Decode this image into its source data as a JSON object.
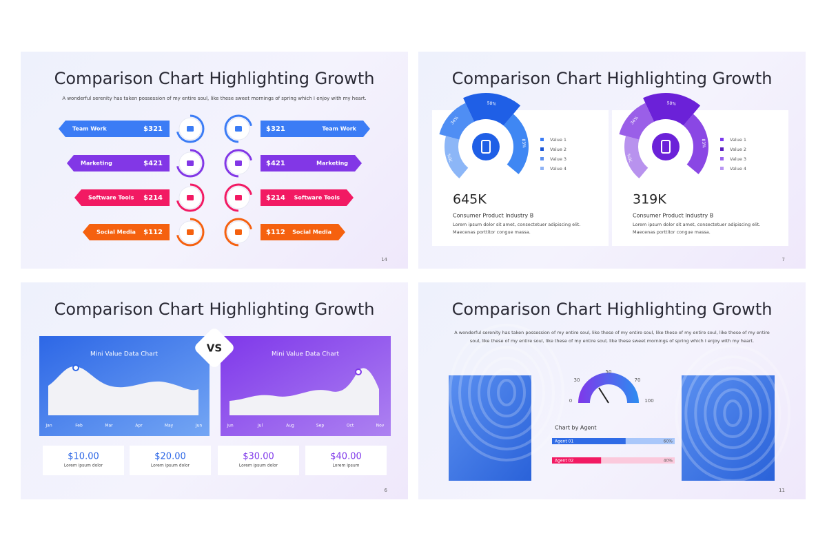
{
  "slides": [
    {
      "number": "14",
      "title": "Comparison Chart Highlighting Growth",
      "subtitle": "A wonderful serenity has taken possession of my entire soul, like these sweet mornings of spring which I enjoy with my heart.",
      "rows": [
        {
          "label": "Team Work",
          "amount": "$321"
        },
        {
          "label": "Marketing",
          "amount": "$421"
        },
        {
          "label": "Software Tools",
          "amount": "$214"
        },
        {
          "label": "Social Media",
          "amount": "$112"
        }
      ]
    },
    {
      "number": "7",
      "title": "Comparison Chart Highlighting Growth",
      "cards": [
        {
          "segments": [
            "70%",
            "34%",
            "58%",
            "83%"
          ],
          "legend": [
            "Value 1",
            "Value 2",
            "Value 3",
            "Value 4"
          ],
          "stat": "645K",
          "heading": "Consumer Product Industry B",
          "text": "Lorem ipsum dolor sit amet, consectetuer adipiscing elit. Maecenas porttitor congue massa."
        },
        {
          "segments": [
            "70%",
            "34%",
            "58%",
            "83%"
          ],
          "legend": [
            "Value 1",
            "Value 2",
            "Value 3",
            "Value 4"
          ],
          "stat": "319K",
          "heading": "Consumer Product Industry B",
          "text": "Lorem ipsum dolor sit amet, consectetuer adipiscing elit. Maecenas porttitor congue massa."
        }
      ]
    },
    {
      "number": "6",
      "title": "Comparison Chart Highlighting Growth",
      "vs": "VS",
      "charts": [
        {
          "title": "Mini Value Data Chart",
          "months": [
            "Jan",
            "Feb",
            "Mar",
            "Apr",
            "May",
            "Jun"
          ]
        },
        {
          "title": "Mini Value Data Chart",
          "months": [
            "Jun",
            "Jul",
            "Aug",
            "Sep",
            "Oct",
            "Nov"
          ]
        }
      ],
      "stats": [
        {
          "value": "$10.00",
          "caption": "Lorem ipsum dolor"
        },
        {
          "value": "$20.00",
          "caption": "Lorem ipsum dolor"
        },
        {
          "value": "$30.00",
          "caption": "Lorem ipsum dolor"
        },
        {
          "value": "$40.00",
          "caption": "Lorem ipsum"
        }
      ]
    },
    {
      "number": "11",
      "title": "Comparison Chart Highlighting Growth",
      "subtitle": "A wonderful serenity has taken possession of my entire soul, like these  of my entire soul, like these  of my entire soul, like these of my entire soul, like these of my entire soul, like these of my entire soul, like these sweet mornings of spring which I enjoy with my heart.",
      "gauge_ticks": [
        "0",
        "30",
        "50",
        "70",
        "100"
      ],
      "chart_title": "Chart by Agent",
      "agents": [
        {
          "name": "Agent 01",
          "value": 60,
          "label": "60%"
        },
        {
          "name": "Agent 02",
          "value": 40,
          "label": "40%"
        }
      ]
    }
  ]
}
